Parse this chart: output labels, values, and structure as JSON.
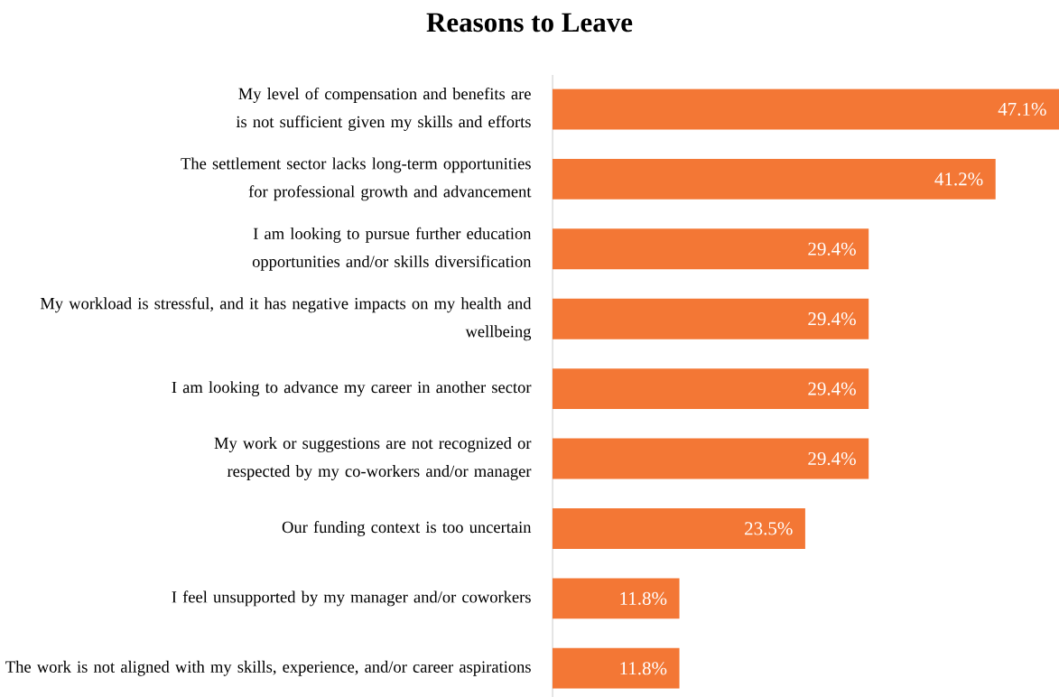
{
  "chart_data": {
    "type": "bar",
    "orientation": "horizontal",
    "title": "Reasons to Leave",
    "categories": [
      "My level of compensation and benefits are is not sufficient given my skills and efforts",
      "The settlement sector lacks long-term opportunities for professional growth and advancement",
      "I am looking to pursue further education opportunities and/or skills diversification",
      "My workload is stressful, and it has negative impacts on my health and wellbeing",
      "I am looking to advance my career in another sector",
      "My work or suggestions are not recognized or respected by my co-workers and/or manager",
      "Our funding context is too uncertain",
      "I feel unsupported by my manager and/or coworkers",
      "The work is not aligned with my skills, experience, and/or career aspirations"
    ],
    "values": [
      47.1,
      41.2,
      29.4,
      29.4,
      29.4,
      29.4,
      23.5,
      11.8,
      11.8
    ],
    "value_labels": [
      "47.1%",
      "41.2%",
      "29.4%",
      "29.4%",
      "29.4%",
      "29.4%",
      "23.5%",
      "11.8%",
      "11.8%"
    ],
    "color": "#f37735",
    "xlim": [
      0,
      47.1
    ],
    "tick_labels": "y",
    "grid": false
  }
}
